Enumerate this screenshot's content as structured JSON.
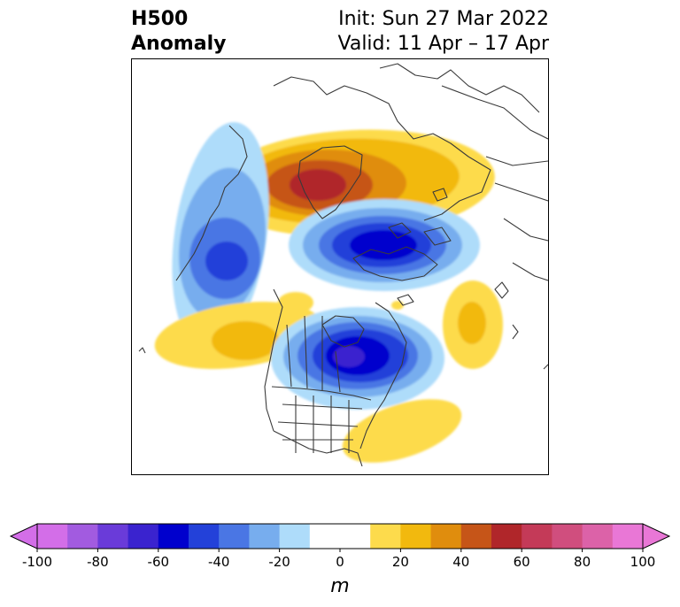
{
  "title": {
    "left_line1": "H500",
    "left_line2": "Anomaly",
    "right_line1": "Init: Sun 27 Mar 2022",
    "right_line2": "Valid: 11 Apr – 17 Apr"
  },
  "colorbar": {
    "units": "m",
    "ticks": [
      "-100",
      "-80",
      "-60",
      "-40",
      "-20",
      "0",
      "20",
      "40",
      "60",
      "80",
      "100"
    ],
    "colors": [
      "#d36ee8",
      "#a25be0",
      "#6a3bd9",
      "#3a23cf",
      "#0000cd",
      "#2341d9",
      "#4a76e4",
      "#77adee",
      "#aedcfa",
      "#ffffff",
      "#ffffff",
      "#fddb4c",
      "#f2b90e",
      "#e08d0d",
      "#c65518",
      "#b0262a",
      "#c43a58",
      "#d04e7e",
      "#dc62a8",
      "#e977d6"
    ]
  },
  "map": {
    "anomaly_centers": [
      {
        "label": "Greenland/Arctic ridge",
        "sign": "positive",
        "peak": 60
      },
      {
        "label": "Arctic/Siberia trough",
        "sign": "negative",
        "peak": -60
      },
      {
        "label": "North Pacific trough",
        "sign": "negative",
        "peak": -50
      },
      {
        "label": "Central Canada trough",
        "sign": "negative",
        "peak": -60
      },
      {
        "label": "Eastern Pacific ridge",
        "sign": "positive",
        "peak": 30
      },
      {
        "label": "North Atlantic ridge",
        "sign": "positive",
        "peak": 30
      },
      {
        "label": "Southeast US ridge",
        "sign": "positive",
        "peak": 20
      }
    ]
  }
}
